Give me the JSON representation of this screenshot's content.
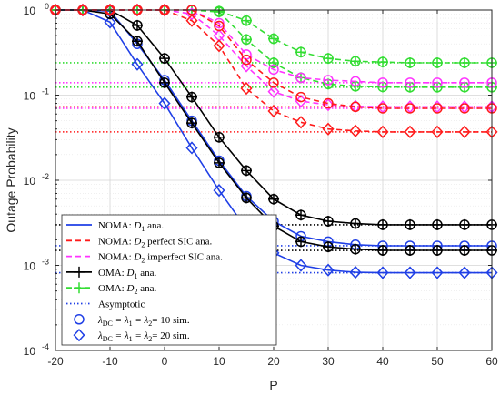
{
  "chart_data": {
    "type": "line",
    "xlabel": "P",
    "ylabel": "Outage Probability",
    "xlim": [
      -20,
      60
    ],
    "ylim": [
      0.0001,
      1
    ],
    "yscale": "log",
    "grid": true,
    "xticks": [
      -20,
      -10,
      0,
      10,
      20,
      30,
      40,
      50,
      60
    ],
    "yticks": [
      {
        "value": 0.0001,
        "base": "10",
        "exp": "-4"
      },
      {
        "value": 0.001,
        "base": "10",
        "exp": "-3"
      },
      {
        "value": 0.01,
        "base": "10",
        "exp": "-2"
      },
      {
        "value": 0.1,
        "base": "10",
        "exp": "-1"
      },
      {
        "value": 1,
        "base": "10",
        "exp": "0"
      }
    ],
    "legend_position": "bottom-left",
    "legend": [
      {
        "label": "NOMA: D1 ana.",
        "parts": [
          "NOMA: ",
          "D",
          "1",
          " ana."
        ],
        "color": "#1f3fe6",
        "dash": "solid",
        "marker": "none"
      },
      {
        "label": "NOMA: D2 perfect SIC ana.",
        "parts": [
          "NOMA: ",
          "D",
          "2",
          " perfect SIC ana."
        ],
        "color": "#ff1a1a",
        "dash": "dashed",
        "marker": "none"
      },
      {
        "label": "NOMA: D2 imperfect SIC ana.",
        "parts": [
          "NOMA: ",
          "D",
          "2",
          " imperfect SIC ana."
        ],
        "color": "#ff33ff",
        "dash": "dashed",
        "marker": "none"
      },
      {
        "label": "OMA: D1 ana.",
        "parts": [
          "OMA: ",
          "D",
          "1",
          " ana."
        ],
        "color": "#000000",
        "dash": "solid",
        "marker": "plus"
      },
      {
        "label": "OMA: D2 ana.",
        "parts": [
          "OMA: ",
          "D",
          "2",
          " ana."
        ],
        "color": "#33dd33",
        "dash": "dashed",
        "marker": "plus"
      },
      {
        "label": "Asymptotic",
        "parts": [
          "Asymptotic",
          "",
          "",
          ""
        ],
        "color": "#1f3fe6",
        "dash": "dotted",
        "marker": "none"
      },
      {
        "label": "λDC = λ1 = λ2= 10 sim.",
        "parts": [
          "λ",
          "DC",
          " = λ",
          "1",
          " = λ",
          "2",
          "= 10 sim."
        ],
        "color": "#1f3fe6",
        "dash": "none",
        "marker": "circle"
      },
      {
        "label": "λDC = λ1 = λ2= 20 sim.",
        "parts": [
          "λ",
          "DC",
          " = λ",
          "1",
          " = λ",
          "2",
          "= 20 sim."
        ],
        "color": "#1f3fe6",
        "dash": "none",
        "marker": "diamond"
      }
    ],
    "x": [
      -20,
      -15,
      -10,
      -5,
      0,
      5,
      10,
      15,
      20,
      25,
      30,
      35,
      40,
      45,
      50,
      55,
      60
    ],
    "series": [
      {
        "group": "NOMA D1 (10)",
        "color": "#1f3fe6",
        "dash": "solid",
        "marker": "circle",
        "values": [
          1,
          1,
          0.97,
          0.4,
          0.15,
          0.05,
          0.017,
          0.0065,
          0.0033,
          0.0022,
          0.0019,
          0.00175,
          0.0017,
          0.0017,
          0.0017,
          0.0017,
          0.0017
        ]
      },
      {
        "group": "NOMA D1 (20)",
        "color": "#1f3fe6",
        "dash": "solid",
        "marker": "diamond",
        "values": [
          1,
          1,
          0.72,
          0.23,
          0.08,
          0.024,
          0.0076,
          0.0027,
          0.0014,
          0.001,
          0.00088,
          0.00083,
          0.00082,
          0.00082,
          0.00082,
          0.00082,
          0.00082
        ]
      },
      {
        "group": "OMA D1 (10)",
        "color": "#000000",
        "dash": "solid",
        "marker": "plus-circle",
        "values": [
          1,
          1,
          1,
          0.66,
          0.27,
          0.095,
          0.032,
          0.013,
          0.006,
          0.0039,
          0.0033,
          0.0031,
          0.003,
          0.003,
          0.003,
          0.003,
          0.003
        ]
      },
      {
        "group": "OMA D1 (20)",
        "color": "#000000",
        "dash": "solid",
        "marker": "plus-circle",
        "values": [
          1,
          1,
          0.9,
          0.43,
          0.14,
          0.047,
          0.016,
          0.0062,
          0.0029,
          0.0019,
          0.00165,
          0.00155,
          0.0015,
          0.0015,
          0.0015,
          0.0015,
          0.0015
        ]
      },
      {
        "group": "OMA D2 (10)",
        "color": "#33dd33",
        "dash": "dashed",
        "marker": "plus-circle",
        "values": [
          1,
          1,
          1,
          1,
          1,
          1,
          0.97,
          0.75,
          0.46,
          0.32,
          0.27,
          0.25,
          0.245,
          0.24,
          0.24,
          0.24,
          0.24
        ]
      },
      {
        "group": "OMA D2 (20)",
        "color": "#33dd33",
        "dash": "dashed",
        "marker": "plus-circle",
        "values": [
          1,
          1,
          1,
          1,
          1,
          1,
          0.95,
          0.45,
          0.24,
          0.16,
          0.135,
          0.127,
          0.125,
          0.124,
          0.124,
          0.124,
          0.124
        ]
      },
      {
        "group": "NOMA D2 imperfect (10)",
        "color": "#ff33ff",
        "dash": "dashed",
        "marker": "circle",
        "values": [
          1,
          1,
          1,
          1,
          1,
          1,
          0.7,
          0.3,
          0.2,
          0.16,
          0.15,
          0.145,
          0.14,
          0.14,
          0.14,
          0.14,
          0.14
        ]
      },
      {
        "group": "NOMA D2 imperfect (20)",
        "color": "#ff33ff",
        "dash": "dashed",
        "marker": "diamond",
        "values": [
          1,
          1,
          1,
          1,
          1,
          0.9,
          0.5,
          0.22,
          0.11,
          0.085,
          0.077,
          0.074,
          0.073,
          0.073,
          0.073,
          0.073,
          0.073
        ]
      },
      {
        "group": "NOMA D2 perfect (10)",
        "color": "#ff1a1a",
        "dash": "dashed",
        "marker": "circle",
        "values": [
          1,
          1,
          1,
          1,
          1,
          1,
          0.65,
          0.26,
          0.14,
          0.095,
          0.08,
          0.073,
          0.07,
          0.07,
          0.07,
          0.07,
          0.07
        ]
      },
      {
        "group": "NOMA D2 perfect (20)",
        "color": "#ff1a1a",
        "dash": "dashed",
        "marker": "diamond",
        "values": [
          1,
          1,
          1,
          1,
          1,
          0.75,
          0.38,
          0.12,
          0.065,
          0.048,
          0.04,
          0.038,
          0.037,
          0.037,
          0.037,
          0.037,
          0.037
        ]
      }
    ],
    "asymptotes": [
      {
        "color": "#33dd33",
        "value": 0.24
      },
      {
        "color": "#ff33ff",
        "value": 0.14
      },
      {
        "color": "#33dd33",
        "value": 0.124
      },
      {
        "color": "#ff1a1a",
        "value": 0.073
      },
      {
        "color": "#ff33ff",
        "value": 0.07
      },
      {
        "color": "#ff1a1a",
        "value": 0.037
      },
      {
        "color": "#000000",
        "value": 0.003
      },
      {
        "color": "#1f3fe6",
        "value": 0.0017
      },
      {
        "color": "#000000",
        "value": 0.0015
      },
      {
        "color": "#1f3fe6",
        "value": 0.00082
      }
    ]
  }
}
